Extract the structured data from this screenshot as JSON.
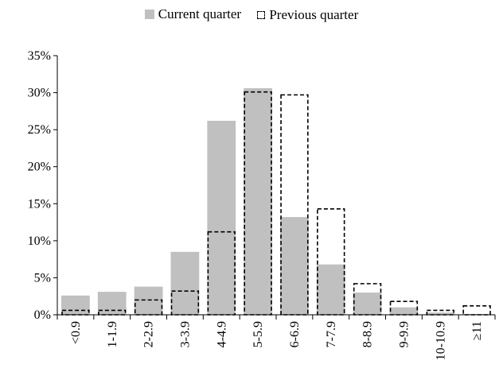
{
  "chart_data": {
    "type": "bar",
    "categories": [
      "<0.9",
      "1-1.9",
      "2-2.9",
      "3-3.9",
      "4-4.9",
      "5-5.9",
      "6-6.9",
      "7-7.9",
      "8-8.9",
      "9-9.9",
      "10-10.9",
      "≥11"
    ],
    "series": [
      {
        "name": "Current quarter",
        "style": "solid",
        "color": "#c0c0c0",
        "values": [
          2.6,
          3.1,
          3.8,
          8.5,
          26.2,
          30.6,
          13.2,
          6.8,
          3.0,
          1.0,
          0.3,
          0.1
        ]
      },
      {
        "name": "Previous quarter",
        "style": "dashed-outline",
        "color": "#000000",
        "values": [
          0.6,
          0.6,
          2.0,
          3.2,
          11.2,
          30.1,
          29.7,
          14.3,
          4.2,
          1.8,
          0.6,
          1.2
        ]
      }
    ],
    "yticks": [
      "0%",
      "5%",
      "10%",
      "15%",
      "20%",
      "25%",
      "30%",
      "35%"
    ],
    "ylim": [
      0,
      35
    ],
    "title": "",
    "xlabel": "",
    "ylabel": "",
    "grid": false,
    "legend_position": "top-center"
  }
}
